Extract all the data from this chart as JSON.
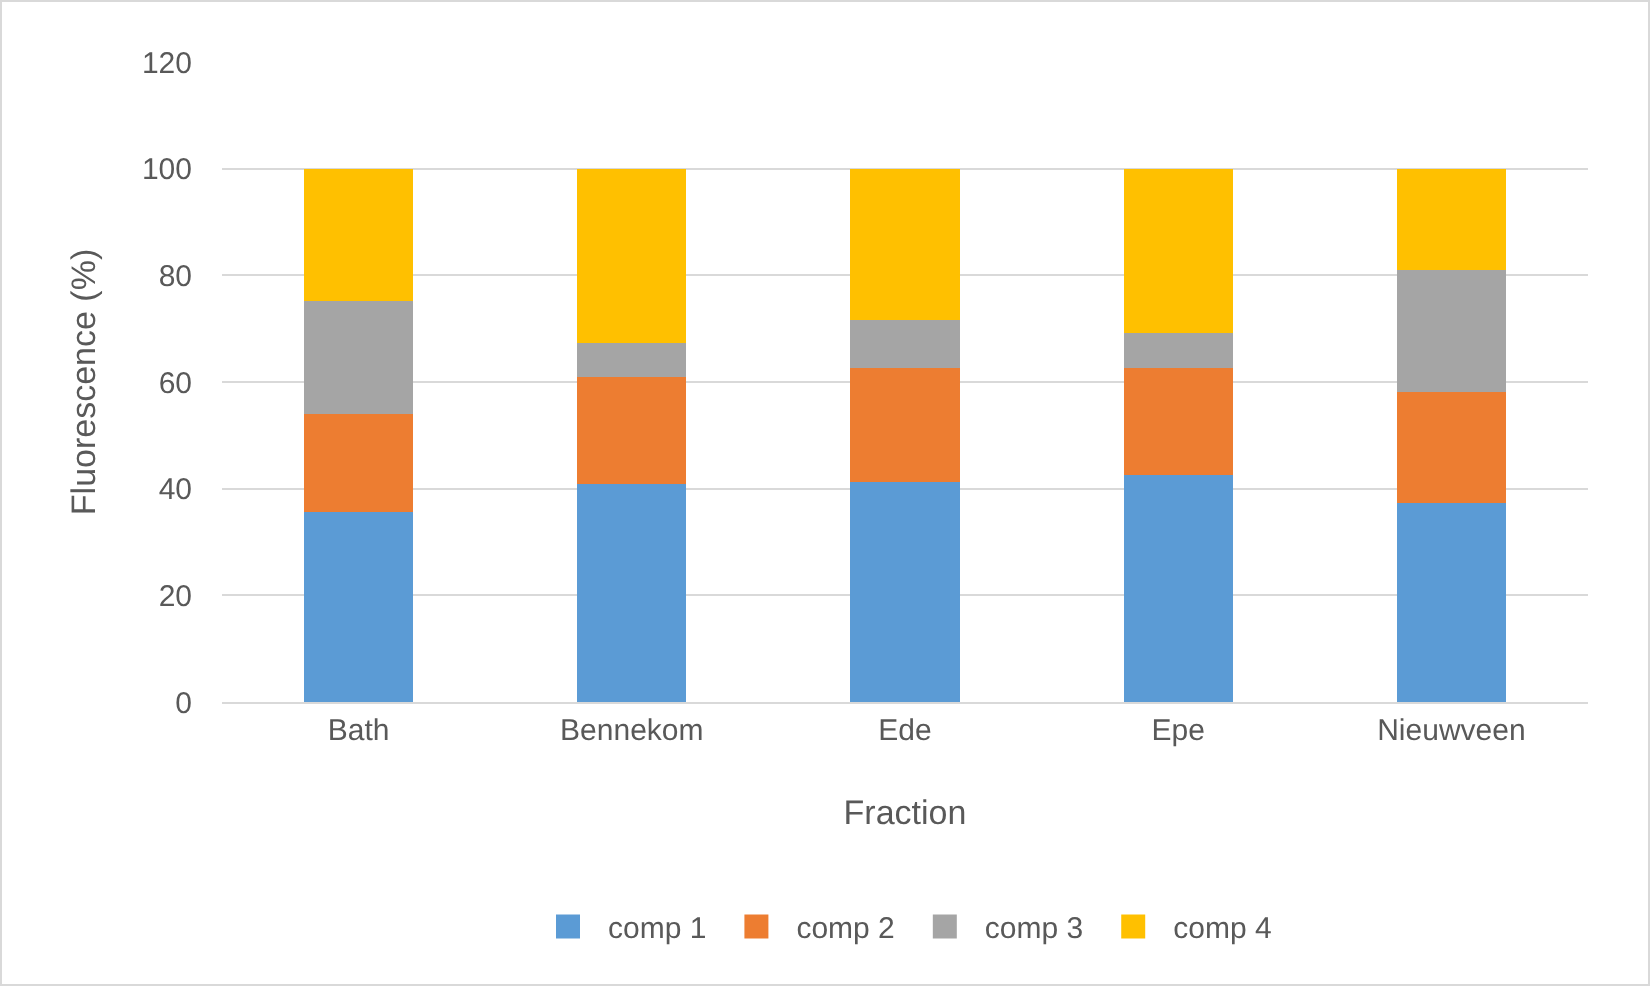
{
  "chart_data": {
    "type": "bar",
    "stacked": true,
    "xlabel": "Fraction",
    "ylabel": "Fluorescence (%)",
    "categories": [
      "Bath",
      "Bennekom",
      "Ede",
      "Epe",
      "Nieuwveen"
    ],
    "series": [
      {
        "name": "comp 1",
        "color": "#5b9bd5",
        "values": [
          35.6,
          40.8,
          41.2,
          42.5,
          37.4
        ]
      },
      {
        "name": "comp 2",
        "color": "#ed7d31",
        "values": [
          18.4,
          20.2,
          21.4,
          20.1,
          20.7
        ]
      },
      {
        "name": "comp 3",
        "color": "#a5a5a5",
        "values": [
          21.1,
          6.4,
          9.1,
          6.5,
          22.9
        ]
      },
      {
        "name": "comp 4",
        "color": "#ffc000",
        "values": [
          24.9,
          32.6,
          28.3,
          30.9,
          19.0
        ]
      }
    ],
    "ylim": [
      0,
      120
    ],
    "yticks": [
      0,
      20,
      40,
      60,
      80,
      100,
      120
    ],
    "grid": "y",
    "legend": "bottom"
  }
}
